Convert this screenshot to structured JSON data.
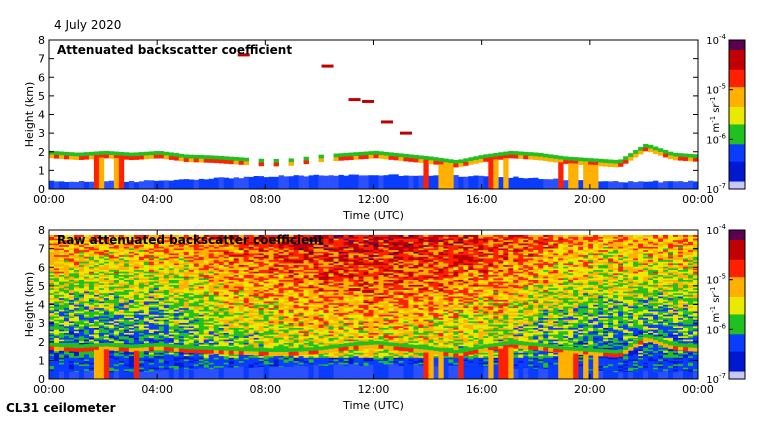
{
  "header": {
    "date": "4 July 2020"
  },
  "footer": {
    "instrument": "CL31 ceilometer"
  },
  "colorbar": {
    "labels": [
      "10",
      "10",
      "10",
      "10"
    ],
    "exponents": [
      "-4",
      "-5",
      "-6",
      "-7"
    ],
    "unit": {
      "m": "m",
      "m_exp": "-1",
      "sr": "sr",
      "sr_exp": "-1"
    },
    "colors": [
      "#5a0050",
      "#c00000",
      "#ff2000",
      "#ffb000",
      "#eaea00",
      "#20c020",
      "#0a3cff",
      "#0018d0",
      "#c8c8ff"
    ]
  },
  "chart_data": [
    {
      "type": "heatmap",
      "title": "Attenuated backscatter coefficient",
      "xlabel": "Time (UTC)",
      "ylabel": "Height (km)",
      "xlim": [
        0,
        24
      ],
      "ylim": [
        0,
        8
      ],
      "xticks": [
        "00:00",
        "04:00",
        "08:00",
        "12:00",
        "16:00",
        "20:00",
        "00:00"
      ],
      "yticks": [
        "0",
        "1",
        "2",
        "3",
        "4",
        "5",
        "6",
        "7",
        "8"
      ],
      "colorscale": {
        "min": "1e-7",
        "max": "1e-4",
        "scale": "log"
      },
      "cloud_base_km": [
        [
          0.0,
          1.7
        ],
        [
          1.0,
          1.6
        ],
        [
          2.0,
          1.7
        ],
        [
          3.0,
          1.6
        ],
        [
          4.0,
          1.7
        ],
        [
          5.0,
          1.5
        ],
        [
          6.0,
          1.45
        ],
        [
          7.0,
          1.35
        ],
        [
          8.0,
          1.25
        ],
        [
          9.0,
          1.3
        ],
        [
          10.0,
          1.5
        ],
        [
          11.0,
          1.6
        ],
        [
          12.0,
          1.7
        ],
        [
          13.0,
          1.55
        ],
        [
          14.0,
          1.4
        ],
        [
          15.0,
          1.2
        ],
        [
          16.0,
          1.5
        ],
        [
          17.0,
          1.7
        ],
        [
          18.0,
          1.6
        ],
        [
          19.0,
          1.4
        ],
        [
          20.0,
          1.3
        ],
        [
          21.0,
          1.2
        ],
        [
          22.0,
          2.1
        ],
        [
          23.0,
          1.6
        ],
        [
          24.0,
          1.5
        ]
      ],
      "elevated_layers_km": [
        [
          7.2,
          7.2
        ],
        [
          10.3,
          6.6
        ],
        [
          11.3,
          4.8
        ],
        [
          11.8,
          4.7
        ],
        [
          12.5,
          3.6
        ],
        [
          13.2,
          3.0
        ]
      ]
    },
    {
      "type": "heatmap",
      "title": "Raw attenuated backscatter coefficient",
      "xlabel": "Time (UTC)",
      "ylabel": "Height (km)",
      "xlim": [
        0,
        24
      ],
      "ylim": [
        0,
        8
      ],
      "xticks": [
        "00:00",
        "04:00",
        "08:00",
        "12:00",
        "16:00",
        "20:00",
        "00:00"
      ],
      "yticks": [
        "0",
        "1",
        "2",
        "3",
        "4",
        "5",
        "6",
        "7",
        "8"
      ],
      "colorscale": {
        "min": "1e-7",
        "max": "1e-4",
        "scale": "log"
      },
      "cloud_base_km": [
        [
          0.0,
          1.6
        ],
        [
          1.0,
          1.5
        ],
        [
          2.0,
          1.6
        ],
        [
          3.0,
          1.5
        ],
        [
          4.0,
          1.6
        ],
        [
          5.0,
          1.45
        ],
        [
          6.0,
          1.4
        ],
        [
          7.0,
          1.35
        ],
        [
          8.0,
          1.3
        ],
        [
          9.0,
          1.3
        ],
        [
          10.0,
          1.4
        ],
        [
          11.0,
          1.6
        ],
        [
          12.0,
          1.7
        ],
        [
          13.0,
          1.55
        ],
        [
          14.0,
          1.4
        ],
        [
          15.0,
          1.2
        ],
        [
          16.0,
          1.5
        ],
        [
          17.0,
          1.7
        ],
        [
          18.0,
          1.6
        ],
        [
          19.0,
          1.4
        ],
        [
          20.0,
          1.3
        ],
        [
          21.0,
          1.2
        ],
        [
          22.0,
          2.1
        ],
        [
          23.0,
          1.6
        ],
        [
          24.0,
          1.5
        ]
      ],
      "elevated_layers_km": [
        [
          11.3,
          4.8
        ],
        [
          11.8,
          4.7
        ]
      ]
    }
  ]
}
